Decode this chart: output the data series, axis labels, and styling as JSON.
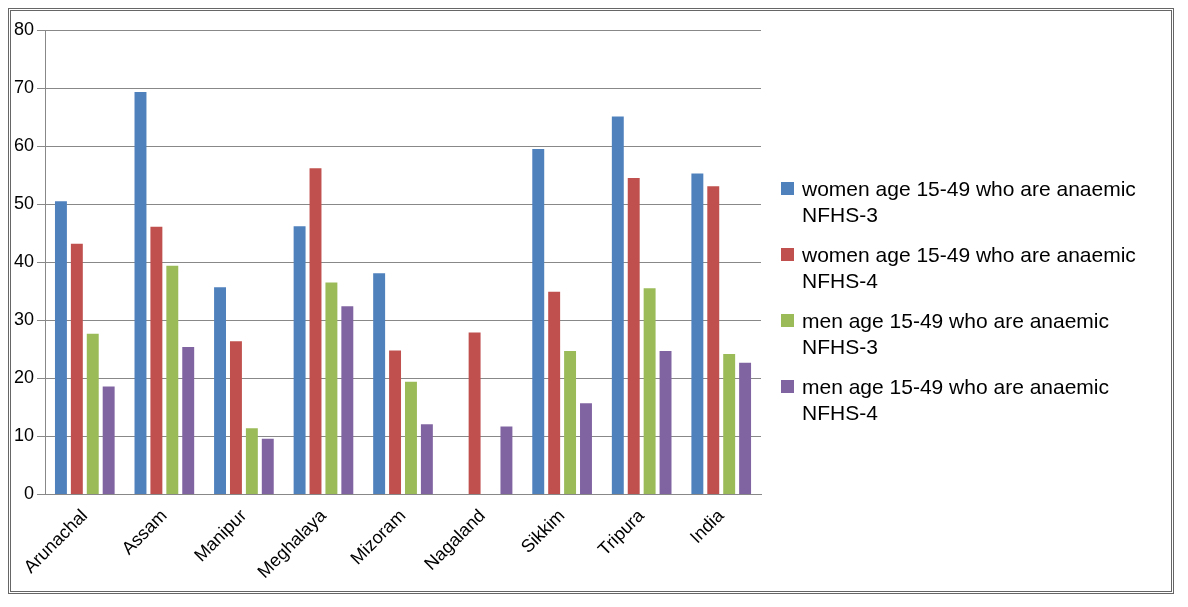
{
  "chart_data": {
    "type": "bar",
    "categories": [
      "Arunachal",
      "Assam",
      "Manipur",
      "Meghalaya",
      "Mizoram",
      "Nagaland",
      "Sikkim",
      "Tripura",
      "India"
    ],
    "series": [
      {
        "name": "women age 15-49 who are anaemic NFHS-3",
        "color": "#4f81bd",
        "values": [
          50.5,
          69.3,
          35.7,
          46.2,
          38.1,
          null,
          59.5,
          65.1,
          55.3
        ]
      },
      {
        "name": "women age 15-49 who are anaemic NFHS-4",
        "color": "#c0504d",
        "values": [
          43.2,
          46.1,
          26.4,
          56.2,
          24.8,
          27.9,
          34.9,
          54.5,
          53.1
        ]
      },
      {
        "name": "men age 15-49 who are anaemic NFHS-3",
        "color": "#9bbb59",
        "values": [
          27.7,
          39.4,
          11.4,
          36.5,
          19.4,
          null,
          24.7,
          35.5,
          24.2
        ]
      },
      {
        "name": "men age 15-49 who are anaemic NFHS-4",
        "color": "#8064a2",
        "values": [
          18.6,
          25.4,
          9.6,
          32.4,
          12.1,
          11.7,
          15.7,
          24.7,
          22.7
        ]
      }
    ],
    "ylim": [
      0,
      80
    ],
    "yticks": [
      0,
      10,
      20,
      30,
      40,
      50,
      60,
      70,
      80
    ],
    "grid": "y",
    "legend": "right"
  }
}
